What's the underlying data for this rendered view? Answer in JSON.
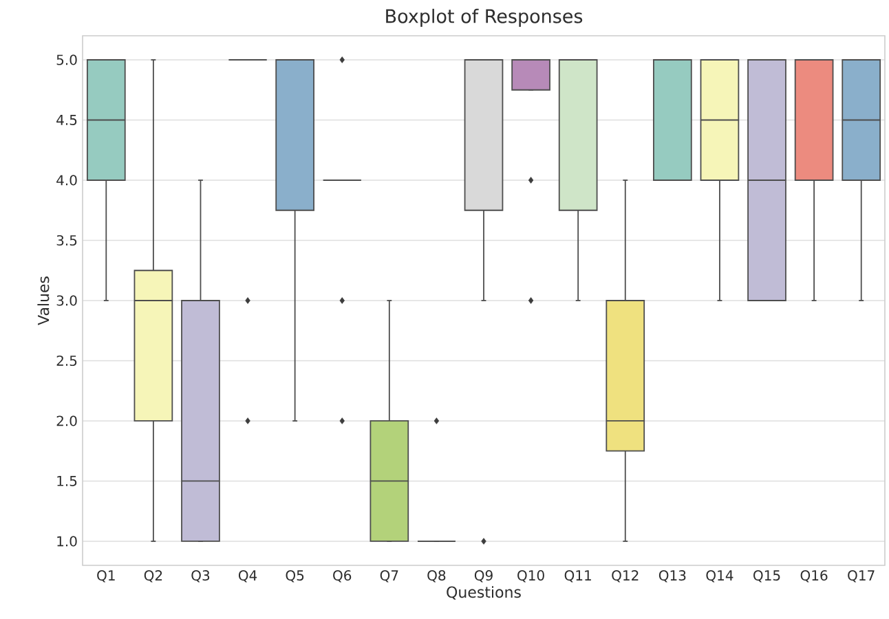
{
  "chart_data": {
    "type": "box",
    "title": "Boxplot of Responses",
    "xlabel": "Questions",
    "ylabel": "Values",
    "categories": [
      "Q1",
      "Q2",
      "Q3",
      "Q4",
      "Q5",
      "Q6",
      "Q7",
      "Q8",
      "Q9",
      "Q10",
      "Q11",
      "Q12",
      "Q13",
      "Q14",
      "Q15",
      "Q16",
      "Q17"
    ],
    "boxes": [
      {
        "low": 3.0,
        "q1": 4.0,
        "median": 4.5,
        "q3": 5.0,
        "high": 5.0
      },
      {
        "low": 1.0,
        "q1": 2.0,
        "median": 3.0,
        "q3": 3.25,
        "high": 5.0
      },
      {
        "low": 1.0,
        "q1": 1.0,
        "median": 1.5,
        "q3": 3.0,
        "high": 4.0
      },
      {
        "low": 5.0,
        "q1": 5.0,
        "median": 5.0,
        "q3": 5.0,
        "high": 5.0,
        "outliers": [
          3.0,
          2.0
        ]
      },
      {
        "low": 2.0,
        "q1": 3.75,
        "median": 5.0,
        "q3": 5.0,
        "high": 5.0
      },
      {
        "low": 4.0,
        "q1": 4.0,
        "median": 4.0,
        "q3": 4.0,
        "high": 4.0,
        "outliers": [
          5.0,
          3.0,
          2.0
        ]
      },
      {
        "low": 1.0,
        "q1": 1.0,
        "median": 1.5,
        "q3": 2.0,
        "high": 3.0
      },
      {
        "low": 1.0,
        "q1": 1.0,
        "median": 1.0,
        "q3": 1.0,
        "high": 1.0,
        "outliers": [
          2.0
        ]
      },
      {
        "low": 3.0,
        "q1": 3.75,
        "median": 5.0,
        "q3": 5.0,
        "high": 5.0,
        "outliers": [
          1.0
        ]
      },
      {
        "low": 4.75,
        "q1": 4.75,
        "median": 5.0,
        "q3": 5.0,
        "high": 5.0,
        "outliers": [
          4.0,
          3.0
        ]
      },
      {
        "low": 3.0,
        "q1": 3.75,
        "median": 5.0,
        "q3": 5.0,
        "high": 5.0
      },
      {
        "low": 1.0,
        "q1": 1.75,
        "median": 2.0,
        "q3": 3.0,
        "high": 4.0
      },
      {
        "low": 4.0,
        "q1": 4.0,
        "median": 5.0,
        "q3": 5.0,
        "high": 5.0
      },
      {
        "low": 3.0,
        "q1": 4.0,
        "median": 4.5,
        "q3": 5.0,
        "high": 5.0
      },
      {
        "low": 3.0,
        "q1": 3.0,
        "median": 4.0,
        "q3": 5.0,
        "high": 5.0
      },
      {
        "low": 3.0,
        "q1": 4.0,
        "median": 5.0,
        "q3": 5.0,
        "high": 5.0
      },
      {
        "low": 3.0,
        "q1": 4.0,
        "median": 4.5,
        "q3": 5.0,
        "high": 5.0
      }
    ],
    "colors": [
      "#96cbc0",
      "#f6f5b8",
      "#c0bcd6",
      "#4d4d4d",
      "#8aafcb",
      "#4d4d4d",
      "#b3d27a",
      "#4d4d4d",
      "#d9d9d9",
      "#b78ab8",
      "#cfe5c8",
      "#efe17f",
      "#96cbc0",
      "#f6f5b8",
      "#c0bcd6",
      "#ec8b7f",
      "#8aafcb"
    ],
    "ylim": [
      0.8,
      5.2
    ],
    "yticks": [
      {
        "value": 1.0,
        "label": "1.0"
      },
      {
        "value": 1.5,
        "label": "1.5"
      },
      {
        "value": 2.0,
        "label": "2.0"
      },
      {
        "value": 2.5,
        "label": "2.5"
      },
      {
        "value": 3.0,
        "label": "3.0"
      },
      {
        "value": 3.5,
        "label": "3.5"
      },
      {
        "value": 4.0,
        "label": "4.0"
      },
      {
        "value": 4.5,
        "label": "4.5"
      },
      {
        "value": 5.0,
        "label": "5.0"
      }
    ],
    "grid": "y",
    "marker": "diamond"
  }
}
